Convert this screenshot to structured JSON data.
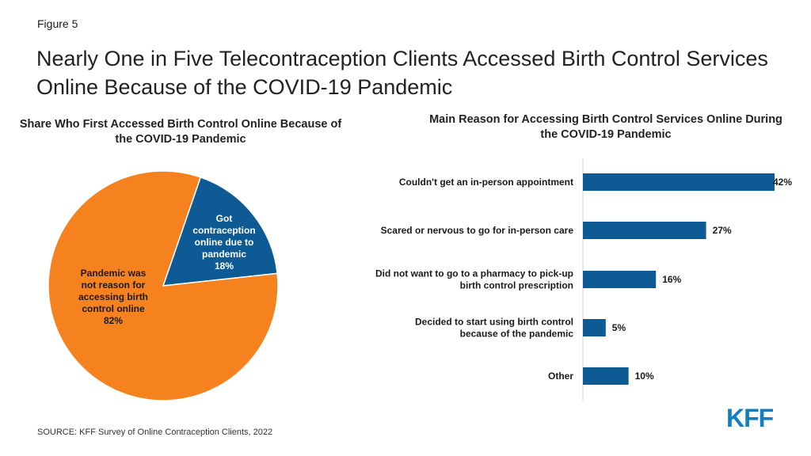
{
  "figure_label": "Figure 5",
  "title": "Nearly One in Five Telecontraception Clients Accessed Birth Control Services Online Because of the COVID-19 Pandemic",
  "source": "SOURCE: KFF Survey of Online Contraception Clients, 2022",
  "logo": "KFF",
  "colors": {
    "orange": "#F5821F",
    "blue": "#0D5A95"
  },
  "chart_data": [
    {
      "type": "pie",
      "title": "Share Who First Accessed Birth Control Online Because of the COVID-19 Pandemic",
      "slices": [
        {
          "label": [
            "Got",
            "contraception",
            "online due to",
            "pandemic",
            "18%"
          ],
          "value": 18,
          "color": "#0D5A95"
        },
        {
          "label": [
            "Pandemic was",
            "not reason for",
            "accessing birth",
            "control online",
            "82%"
          ],
          "value": 82,
          "color": "#F5821F"
        }
      ]
    },
    {
      "type": "bar",
      "orientation": "horizontal",
      "title": "Main Reason for Accessing Birth Control Services Online During the COVID-19 Pandemic",
      "categories": [
        [
          "Couldn't get an in-person appointment"
        ],
        [
          "Scared or nervous to go for in-person care"
        ],
        [
          "Did not want to go to a pharmacy to pick-up",
          "birth control prescription"
        ],
        [
          "Decided to start using birth control",
          "because of the pandemic"
        ],
        [
          "Other"
        ]
      ],
      "values": [
        42,
        27,
        16,
        5,
        10
      ],
      "value_labels": [
        "42%",
        "27%",
        "16%",
        "5%",
        "10%"
      ],
      "color": "#0D5A95"
    }
  ]
}
